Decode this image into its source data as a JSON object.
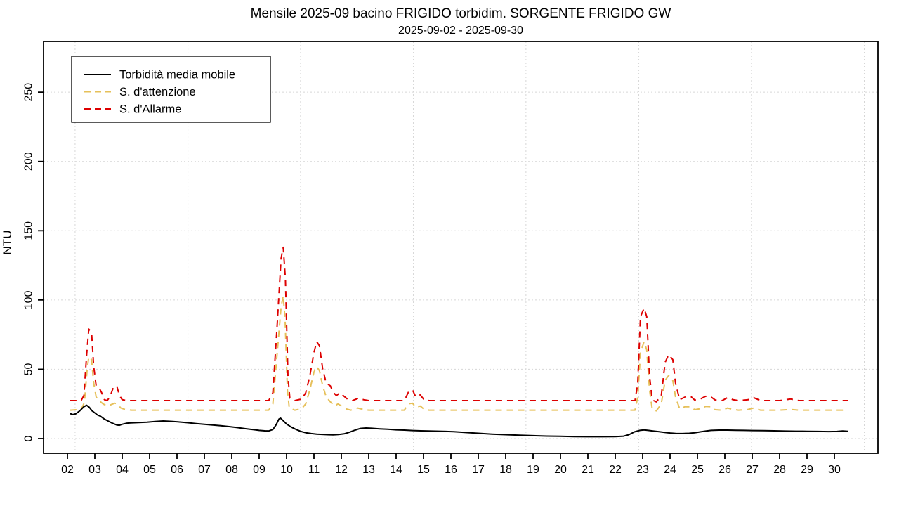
{
  "chart_data": {
    "type": "line",
    "title": "Mensile 2025-09 bacino FRIGIDO torbidim. SORGENTE FRIGIDO GW",
    "subtitle": "2025-09-02 - 2025-09-30",
    "xlabel": "",
    "ylabel": "NTU",
    "x_unit": "day of month, September 2025",
    "ylim": [
      -10,
      285
    ],
    "y_ticks": [
      0,
      50,
      100,
      150,
      200,
      250
    ],
    "x_tick_labels": [
      "02",
      "03",
      "04",
      "05",
      "06",
      "07",
      "08",
      "09",
      "10",
      "11",
      "12",
      "13",
      "14",
      "15",
      "16",
      "17",
      "18",
      "19",
      "20",
      "21",
      "22",
      "23",
      "24",
      "25",
      "26",
      "27",
      "28",
      "29",
      "30"
    ],
    "x_tick_days": [
      2,
      3,
      4,
      5,
      6,
      7,
      8,
      9,
      10,
      11,
      12,
      13,
      14,
      15,
      16,
      17,
      18,
      19,
      20,
      21,
      22,
      23,
      24,
      25,
      26,
      27,
      28,
      29,
      30
    ],
    "grid": {
      "show": true,
      "style": "dotted",
      "color": "#d6d6d6",
      "vertical_gridline_days": [
        2.28,
        6.4,
        10.51,
        14.63,
        18.74,
        22.86,
        26.97,
        31.09
      ]
    },
    "legend_position": "top-left",
    "threshold_baselines": {
      "attention_ntu": 20.5,
      "alarm_ntu": 27.4
    },
    "draw_order": [
      1,
      2,
      0
    ],
    "series": [
      {
        "name": "Torbidità media mobile",
        "color": "#000000",
        "line_style": "solid",
        "points": [
          [
            2.1,
            18
          ],
          [
            2.2,
            17.3
          ],
          [
            2.3,
            17.8
          ],
          [
            2.45,
            20
          ],
          [
            2.6,
            23
          ],
          [
            2.7,
            24
          ],
          [
            2.8,
            22.5
          ],
          [
            2.9,
            20
          ],
          [
            3.0,
            18.5
          ],
          [
            3.1,
            17
          ],
          [
            3.2,
            16.2
          ],
          [
            3.35,
            14
          ],
          [
            3.5,
            12.5
          ],
          [
            3.65,
            11
          ],
          [
            3.8,
            9.8
          ],
          [
            3.9,
            9.6
          ],
          [
            4.0,
            10.3
          ],
          [
            4.15,
            11
          ],
          [
            4.3,
            11.3
          ],
          [
            4.6,
            11.5
          ],
          [
            4.9,
            11.8
          ],
          [
            5.2,
            12.3
          ],
          [
            5.5,
            12.7
          ],
          [
            5.8,
            12.4
          ],
          [
            6.1,
            11.9
          ],
          [
            6.4,
            11.4
          ],
          [
            6.7,
            10.8
          ],
          [
            7.0,
            10.3
          ],
          [
            7.3,
            9.8
          ],
          [
            7.6,
            9.3
          ],
          [
            7.9,
            8.6
          ],
          [
            8.2,
            7.9
          ],
          [
            8.5,
            7.1
          ],
          [
            8.8,
            6.4
          ],
          [
            9.0,
            5.9
          ],
          [
            9.2,
            5.6
          ],
          [
            9.35,
            5.5
          ],
          [
            9.5,
            6.5
          ],
          [
            9.62,
            10
          ],
          [
            9.72,
            14
          ],
          [
            9.78,
            14.7
          ],
          [
            9.9,
            12.5
          ],
          [
            10.0,
            10.5
          ],
          [
            10.15,
            8.5
          ],
          [
            10.3,
            7.0
          ],
          [
            10.5,
            5.3
          ],
          [
            10.7,
            4.2
          ],
          [
            10.9,
            3.6
          ],
          [
            11.1,
            3.2
          ],
          [
            11.3,
            3.0
          ],
          [
            11.5,
            2.8
          ],
          [
            11.7,
            2.7
          ],
          [
            11.9,
            2.9
          ],
          [
            12.1,
            3.4
          ],
          [
            12.3,
            4.6
          ],
          [
            12.5,
            6.1
          ],
          [
            12.7,
            7.3
          ],
          [
            12.9,
            7.6
          ],
          [
            13.1,
            7.4
          ],
          [
            13.4,
            7.0
          ],
          [
            13.7,
            6.7
          ],
          [
            14.0,
            6.3
          ],
          [
            14.3,
            6.1
          ],
          [
            14.6,
            5.8
          ],
          [
            14.9,
            5.6
          ],
          [
            15.3,
            5.4
          ],
          [
            15.7,
            5.2
          ],
          [
            16.1,
            4.9
          ],
          [
            16.5,
            4.4
          ],
          [
            17.0,
            3.8
          ],
          [
            17.5,
            3.2
          ],
          [
            18.0,
            2.8
          ],
          [
            18.5,
            2.4
          ],
          [
            19.0,
            2.1
          ],
          [
            19.5,
            1.8
          ],
          [
            20.0,
            1.6
          ],
          [
            20.5,
            1.4
          ],
          [
            21.0,
            1.3
          ],
          [
            21.5,
            1.3
          ],
          [
            22.0,
            1.4
          ],
          [
            22.3,
            1.7
          ],
          [
            22.5,
            2.8
          ],
          [
            22.7,
            4.8
          ],
          [
            22.9,
            5.9
          ],
          [
            23.05,
            6.2
          ],
          [
            23.2,
            5.9
          ],
          [
            23.4,
            5.4
          ],
          [
            23.6,
            4.9
          ],
          [
            23.8,
            4.4
          ],
          [
            24.0,
            4.0
          ],
          [
            24.2,
            3.7
          ],
          [
            24.45,
            3.6
          ],
          [
            24.7,
            3.8
          ],
          [
            24.9,
            4.2
          ],
          [
            25.1,
            4.8
          ],
          [
            25.3,
            5.4
          ],
          [
            25.5,
            5.9
          ],
          [
            25.8,
            6.1
          ],
          [
            26.1,
            6.1
          ],
          [
            26.4,
            6.0
          ],
          [
            26.7,
            5.9
          ],
          [
            27.0,
            5.8
          ],
          [
            27.4,
            5.7
          ],
          [
            27.8,
            5.6
          ],
          [
            28.2,
            5.4
          ],
          [
            28.6,
            5.3
          ],
          [
            29.0,
            5.2
          ],
          [
            29.4,
            5.1
          ],
          [
            29.8,
            5.0
          ],
          [
            30.1,
            5.1
          ],
          [
            30.3,
            5.5
          ],
          [
            30.5,
            5.2
          ]
        ]
      },
      {
        "name": "S. d'attenzione",
        "color": "#e6c05a",
        "line_style": "dashed",
        "points": [
          [
            2.1,
            20.5
          ],
          [
            2.5,
            21
          ],
          [
            2.62,
            26
          ],
          [
            2.72,
            50
          ],
          [
            2.78,
            59
          ],
          [
            2.88,
            57
          ],
          [
            2.96,
            40
          ],
          [
            3.05,
            30
          ],
          [
            3.15,
            27.5
          ],
          [
            3.3,
            25
          ],
          [
            3.45,
            23.5
          ],
          [
            3.6,
            24.5
          ],
          [
            3.72,
            25.5
          ],
          [
            3.82,
            25
          ],
          [
            3.95,
            22
          ],
          [
            4.1,
            21
          ],
          [
            4.35,
            20.5
          ],
          [
            9.35,
            20.5
          ],
          [
            9.5,
            25
          ],
          [
            9.65,
            60
          ],
          [
            9.8,
            95
          ],
          [
            9.88,
            103
          ],
          [
            9.95,
            85
          ],
          [
            10.03,
            35
          ],
          [
            10.1,
            22
          ],
          [
            10.3,
            20.5
          ],
          [
            10.55,
            21.5
          ],
          [
            10.7,
            25
          ],
          [
            10.85,
            35
          ],
          [
            11.0,
            48
          ],
          [
            11.1,
            52
          ],
          [
            11.2,
            49
          ],
          [
            11.32,
            38
          ],
          [
            11.45,
            30
          ],
          [
            11.6,
            26.5
          ],
          [
            11.75,
            23.5
          ],
          [
            11.88,
            25
          ],
          [
            12.0,
            23.5
          ],
          [
            12.15,
            21.5
          ],
          [
            12.35,
            20.5
          ],
          [
            12.6,
            22
          ],
          [
            12.8,
            21
          ],
          [
            13.0,
            20.5
          ],
          [
            14.3,
            20.5
          ],
          [
            14.45,
            25
          ],
          [
            14.6,
            25.5
          ],
          [
            14.72,
            22.5
          ],
          [
            14.88,
            23.5
          ],
          [
            15.0,
            21.5
          ],
          [
            15.2,
            20.5
          ],
          [
            22.72,
            20.5
          ],
          [
            22.82,
            30
          ],
          [
            22.92,
            62
          ],
          [
            23.05,
            70
          ],
          [
            23.15,
            64
          ],
          [
            23.25,
            35
          ],
          [
            23.35,
            21
          ],
          [
            23.5,
            20
          ],
          [
            23.68,
            25
          ],
          [
            23.82,
            42
          ],
          [
            23.95,
            45.5
          ],
          [
            24.1,
            42
          ],
          [
            24.2,
            30
          ],
          [
            24.35,
            21.5
          ],
          [
            24.55,
            23
          ],
          [
            24.75,
            23
          ],
          [
            24.9,
            20.8
          ],
          [
            25.1,
            21.5
          ],
          [
            25.3,
            23.2
          ],
          [
            25.5,
            23
          ],
          [
            25.65,
            20.8
          ],
          [
            25.9,
            20.5
          ],
          [
            26.1,
            22
          ],
          [
            26.3,
            21
          ],
          [
            26.5,
            20.5
          ],
          [
            26.85,
            21
          ],
          [
            27.05,
            22
          ],
          [
            27.3,
            20.5
          ],
          [
            28.0,
            20.5
          ],
          [
            28.4,
            21
          ],
          [
            28.7,
            20.5
          ],
          [
            29.2,
            20.5
          ],
          [
            29.8,
            20.5
          ],
          [
            30.5,
            20.5
          ]
        ]
      },
      {
        "name": "S. d'Allarme",
        "color": "#dd0000",
        "line_style": "dashed",
        "points": [
          [
            2.1,
            27.4
          ],
          [
            2.5,
            27.4
          ],
          [
            2.6,
            31
          ],
          [
            2.7,
            60
          ],
          [
            2.78,
            79
          ],
          [
            2.88,
            77
          ],
          [
            2.96,
            52
          ],
          [
            3.05,
            38
          ],
          [
            3.15,
            37
          ],
          [
            3.25,
            33
          ],
          [
            3.35,
            28
          ],
          [
            3.45,
            27.4
          ],
          [
            3.55,
            30
          ],
          [
            3.68,
            37
          ],
          [
            3.8,
            38
          ],
          [
            3.9,
            31
          ],
          [
            4.0,
            28
          ],
          [
            4.2,
            27.4
          ],
          [
            9.35,
            27.4
          ],
          [
            9.5,
            33
          ],
          [
            9.65,
            80
          ],
          [
            9.8,
            130
          ],
          [
            9.88,
            138
          ],
          [
            9.96,
            115
          ],
          [
            10.05,
            45
          ],
          [
            10.12,
            29
          ],
          [
            10.3,
            27.4
          ],
          [
            10.55,
            28.5
          ],
          [
            10.7,
            33
          ],
          [
            10.85,
            45
          ],
          [
            11.0,
            62
          ],
          [
            11.1,
            70
          ],
          [
            11.2,
            67
          ],
          [
            11.32,
            50
          ],
          [
            11.45,
            40
          ],
          [
            11.6,
            38
          ],
          [
            11.7,
            33.5
          ],
          [
            11.82,
            31
          ],
          [
            11.95,
            33
          ],
          [
            12.1,
            30.5
          ],
          [
            12.25,
            28
          ],
          [
            12.4,
            27.4
          ],
          [
            12.62,
            29
          ],
          [
            12.82,
            28
          ],
          [
            13.0,
            27.4
          ],
          [
            14.3,
            27.4
          ],
          [
            14.45,
            33.5
          ],
          [
            14.6,
            35
          ],
          [
            14.72,
            30
          ],
          [
            14.88,
            31.5
          ],
          [
            15.0,
            28.5
          ],
          [
            15.2,
            27.4
          ],
          [
            22.72,
            27.4
          ],
          [
            22.82,
            40
          ],
          [
            22.92,
            88
          ],
          [
            23.05,
            94
          ],
          [
            23.15,
            88
          ],
          [
            23.25,
            45
          ],
          [
            23.35,
            27.8
          ],
          [
            23.5,
            26.5
          ],
          [
            23.68,
            31
          ],
          [
            23.82,
            55
          ],
          [
            23.95,
            60.5
          ],
          [
            24.1,
            57
          ],
          [
            24.2,
            40
          ],
          [
            24.35,
            28
          ],
          [
            24.55,
            30
          ],
          [
            24.75,
            30.5
          ],
          [
            24.9,
            27.8
          ],
          [
            25.1,
            28.5
          ],
          [
            25.3,
            30.5
          ],
          [
            25.5,
            30
          ],
          [
            25.65,
            27.8
          ],
          [
            25.9,
            27.4
          ],
          [
            26.1,
            29.5
          ],
          [
            26.3,
            28
          ],
          [
            26.5,
            27.4
          ],
          [
            26.85,
            28
          ],
          [
            27.05,
            29.5
          ],
          [
            27.3,
            27.4
          ],
          [
            28.0,
            27.4
          ],
          [
            28.4,
            28.5
          ],
          [
            28.7,
            27.4
          ],
          [
            29.2,
            27.4
          ],
          [
            29.8,
            27.4
          ],
          [
            30.5,
            27.4
          ]
        ]
      }
    ]
  }
}
